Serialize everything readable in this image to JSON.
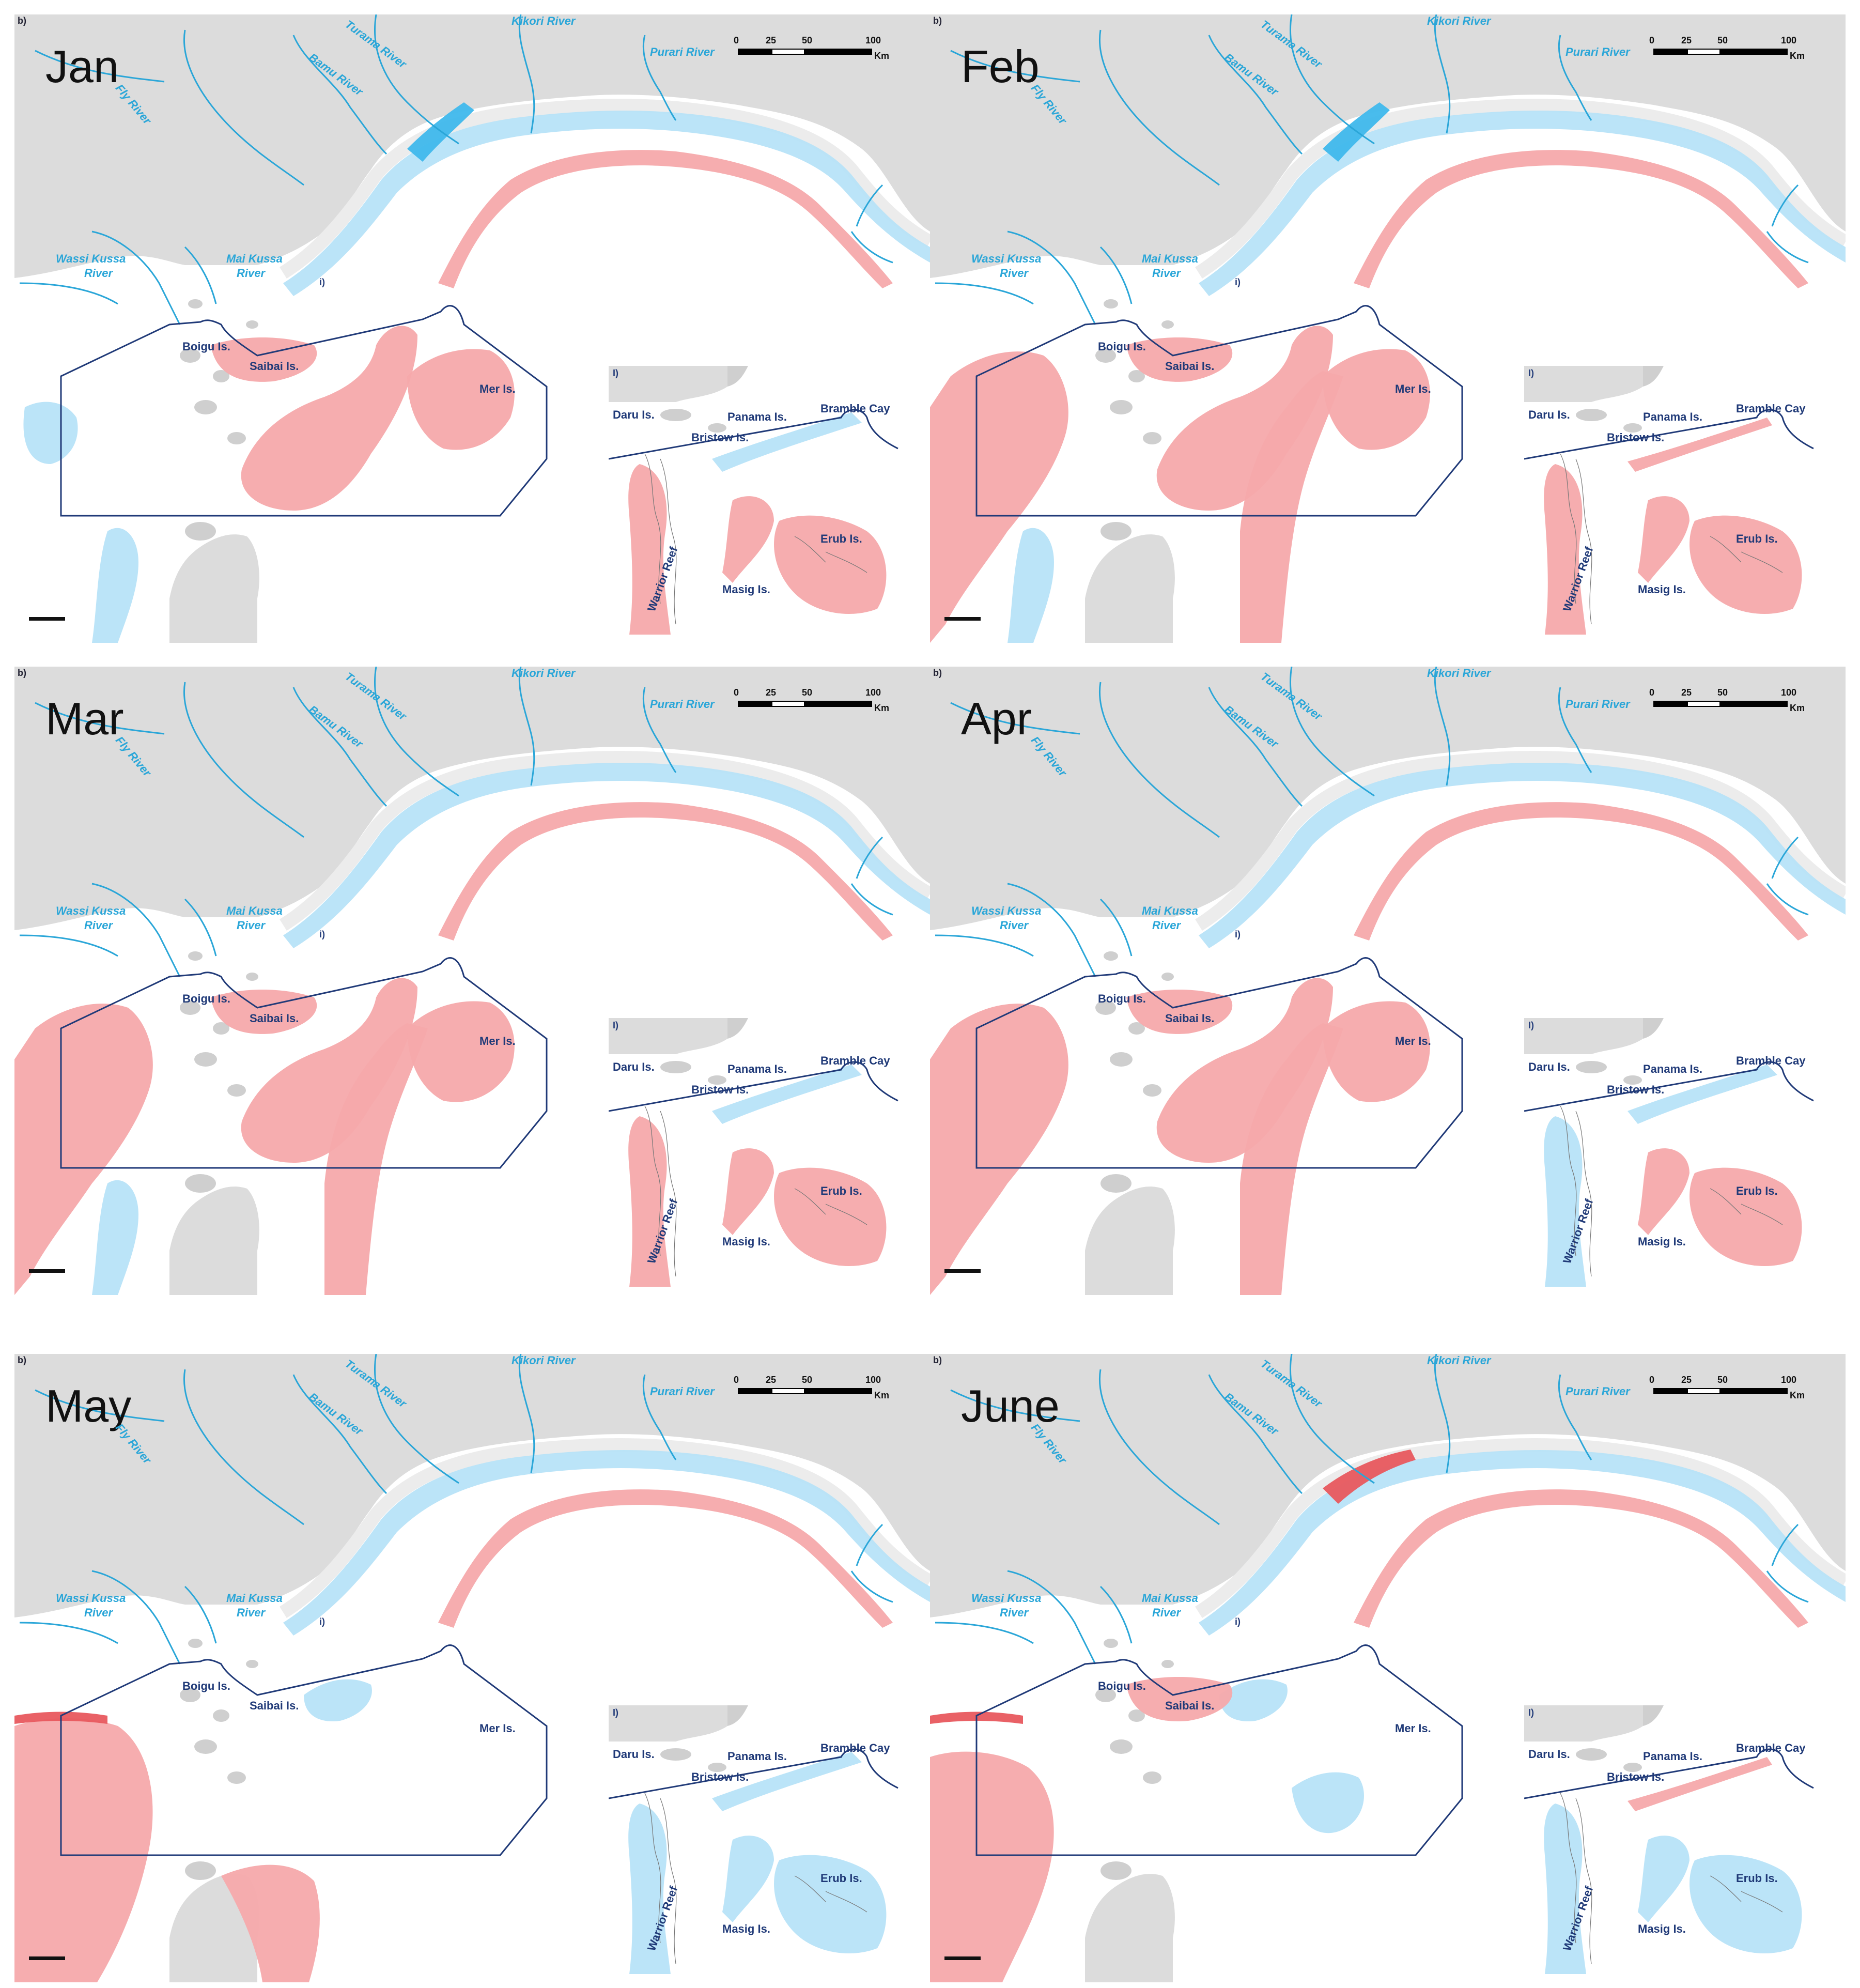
{
  "panel_letter": "b)",
  "inset_marker": "i)",
  "inset_letter": "I)",
  "scale_bar": {
    "ticks": [
      "0",
      "25",
      "50",
      "100"
    ],
    "unit": "Km"
  },
  "rivers": {
    "turama": "Turama River",
    "kikori": "Kikori River",
    "bamu": "Bamu River",
    "purari": "Purari River",
    "fly": "Fly River",
    "wassi_line1": "Wassi Kussa",
    "wassi_line2": "River",
    "mai_line1": "Mai Kussa",
    "mai_line2": "River"
  },
  "islands": {
    "boigu": "Boigu Is.",
    "saibai": "Saibai Is.",
    "mer": "Mer Is."
  },
  "inset_labels": {
    "daru": "Daru Is.",
    "panama": "Panama Is.",
    "bramble": "Bramble Cay",
    "bristow": "Bristow Is.",
    "warrior": "Warrior Reef",
    "erub": "Erub Is.",
    "masig": "Masig Is."
  },
  "colors": {
    "land": "#dcdcdc",
    "positive_anomaly": "#f6a9ab",
    "negative_anomaly": "#b7e3f8",
    "river": "#2aa6d8",
    "boundary": "#203a78"
  },
  "panels": [
    {
      "month": "Jan",
      "pattern": "jan"
    },
    {
      "month": "Feb",
      "pattern": "feb"
    },
    {
      "month": "Mar",
      "pattern": "mar"
    },
    {
      "month": "Apr",
      "pattern": "apr"
    },
    {
      "month": "May",
      "pattern": "may"
    },
    {
      "month": "June",
      "pattern": "jun"
    }
  ]
}
